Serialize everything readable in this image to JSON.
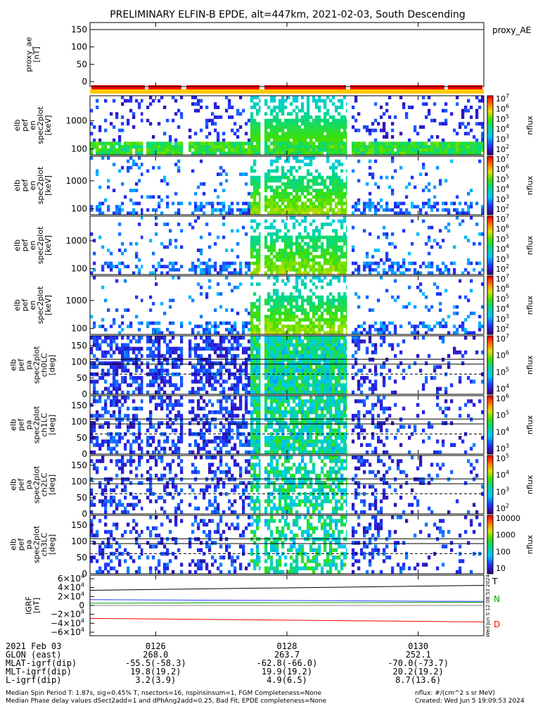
{
  "chart_data": {
    "type": "heatmap",
    "title": "PRELIMINARY ELFIN-B EPDE, alt=447km, 2021-02-03, South Descending",
    "created": "Created: Wed Jun  5 19:09:53 2024",
    "side_stamp": "Wed Jun  5 12:08:53 2024",
    "colors": {
      "state_bar": "#ff0000",
      "state_line": "#ffc800",
      "igrf_t": "#000000",
      "igrf_n": "#00a000",
      "igrf_d": "#ff0000"
    },
    "time_ticks": [
      "0126",
      "0128",
      "0130"
    ],
    "panels": [
      {
        "name": "proxy_ae",
        "type": "line",
        "ylabel": [
          "proxy_ae",
          "[nT]"
        ],
        "ticks": [
          "150",
          "100",
          "50",
          "0"
        ],
        "legend": "proxy_AE"
      },
      {
        "name": "energy-1",
        "type": "heatmap",
        "ylabel": [
          "elb",
          "pef",
          "en",
          "spec2plot",
          "[keV]"
        ],
        "ticks": [
          "1000",
          "100"
        ],
        "zlabel": "nflux",
        "zrange": [
          100,
          10000000
        ],
        "zticks": [
          "10",
          "10",
          "10",
          "10",
          "10",
          "10"
        ],
        "zexp": [
          "7",
          "6",
          "5",
          "4",
          "3",
          "2"
        ]
      },
      {
        "name": "energy-2",
        "type": "heatmap",
        "ylabel": [
          "elb",
          "pef",
          "en",
          "spec2plot",
          "[keV]"
        ],
        "ticks": [
          "1000",
          "100"
        ],
        "zlabel": "nflux",
        "zrange": [
          100,
          10000000
        ],
        "zticks": [
          "10",
          "10",
          "10",
          "10",
          "10",
          "10"
        ],
        "zexp": [
          "7",
          "6",
          "5",
          "4",
          "3",
          "2"
        ]
      },
      {
        "name": "energy-3",
        "type": "heatmap",
        "ylabel": [
          "elb",
          "pef",
          "en",
          "spec2plot",
          "[keV]"
        ],
        "ticks": [
          "1000",
          "100"
        ],
        "zlabel": "nflux",
        "zrange": [
          100,
          10000000
        ],
        "zticks": [
          "10",
          "10",
          "10",
          "10",
          "10",
          "10"
        ],
        "zexp": [
          "7",
          "6",
          "5",
          "4",
          "3",
          "2"
        ]
      },
      {
        "name": "energy-4",
        "type": "heatmap",
        "ylabel": [
          "elb",
          "pef",
          "en",
          "spec2plot",
          "[keV]"
        ],
        "ticks": [
          "1000",
          "100"
        ],
        "zlabel": "nflux",
        "zrange": [
          100,
          10000000
        ],
        "zticks": [
          "10",
          "10",
          "10",
          "10",
          "10",
          "10"
        ],
        "zexp": [
          "7",
          "6",
          "5",
          "4",
          "3",
          "2"
        ]
      },
      {
        "name": "pitch-ch0",
        "type": "heatmap",
        "ylabel": [
          "elb",
          "pef",
          "pa",
          "spec2plot",
          "ch0LC",
          "[deg]"
        ],
        "ticks": [
          "150",
          "100",
          "50",
          "0"
        ],
        "zlabel": "nflux",
        "zrange": [
          1000,
          10000000
        ],
        "zticks": [
          "10",
          "10",
          "10",
          "10"
        ],
        "zexp": [
          "7",
          "6",
          "5",
          "4"
        ]
      },
      {
        "name": "pitch-ch1",
        "type": "heatmap",
        "ylabel": [
          "elb",
          "pef",
          "pa",
          "spec2plot",
          "ch1LC",
          "[deg]"
        ],
        "ticks": [
          "150",
          "100",
          "50",
          "0"
        ],
        "zlabel": "nflux",
        "zrange": [
          1000,
          1000000
        ],
        "zticks": [
          "10",
          "10",
          "10",
          "10"
        ],
        "zexp": [
          "6",
          "5",
          "4",
          "3"
        ]
      },
      {
        "name": "pitch-ch2",
        "type": "heatmap",
        "ylabel": [
          "elb",
          "pef",
          "pa",
          "spec2plot",
          "ch2LC",
          "[deg]"
        ],
        "ticks": [
          "150",
          "100",
          "50",
          "0"
        ],
        "zlabel": "nflux",
        "zrange": [
          100,
          100000
        ],
        "zticks": [
          "10",
          "10",
          "10",
          "10"
        ],
        "zexp": [
          "5",
          "4",
          "3",
          "2"
        ]
      },
      {
        "name": "pitch-ch3",
        "type": "heatmap",
        "ylabel": [
          "elb",
          "pef",
          "pa",
          "spec2plot",
          "ch3LC",
          "[deg]"
        ],
        "ticks": [
          "150",
          "100",
          "50",
          "0"
        ],
        "zlabel": "nflux",
        "zrange": [
          10,
          10000
        ],
        "zticks": [
          "10000",
          "1000",
          "100",
          "10"
        ],
        "zexp": [
          "",
          "",
          "",
          ""
        ]
      },
      {
        "name": "igrf",
        "type": "line",
        "ylabel": [
          "IGRF",
          "[nT]"
        ],
        "ticks": [
          "6×10",
          "4×10",
          "2×10",
          "0",
          "−2×10",
          "−4×10",
          "−6×10"
        ],
        "tickexp": [
          "4",
          "4",
          "4",
          "",
          "4",
          "4",
          "4"
        ],
        "legend": [
          "T",
          "N",
          "D"
        ]
      }
    ],
    "footer": {
      "rows": [
        {
          "label": "2021 Feb 03",
          "values": [
            "0126",
            "0128",
            "0130"
          ]
        },
        {
          "label": "GLON (east)",
          "values": [
            "268.0",
            "263.7",
            "252.1"
          ]
        },
        {
          "label": "MLAT-igrf(dip)",
          "values": [
            "-55.5(-58.3)",
            "-62.8(-66.0)",
            "-70.0(-73.7)"
          ]
        },
        {
          "label": "MLT-igrf(dip)",
          "values": [
            "19.8(19.2)",
            "19.9(19.2)",
            "20.2(19.2)"
          ]
        },
        {
          "label": "L-igrf(dip)",
          "values": [
            "3.2(3.9)",
            "4.9(6.5)",
            "8.7(13.6)"
          ]
        }
      ],
      "note1": "Median Spin Period T: 1.87s, sig=0.45% T, nsectors=16, nspinsinsum=1, FGM Completeness=None",
      "note2": "Median Phase delay values dSect2add=1 and dPhAng2add=0.25, Bad Fit, EPDE completeness=None",
      "units": "nflux: #/(cm^2 s sr MeV)"
    }
  }
}
